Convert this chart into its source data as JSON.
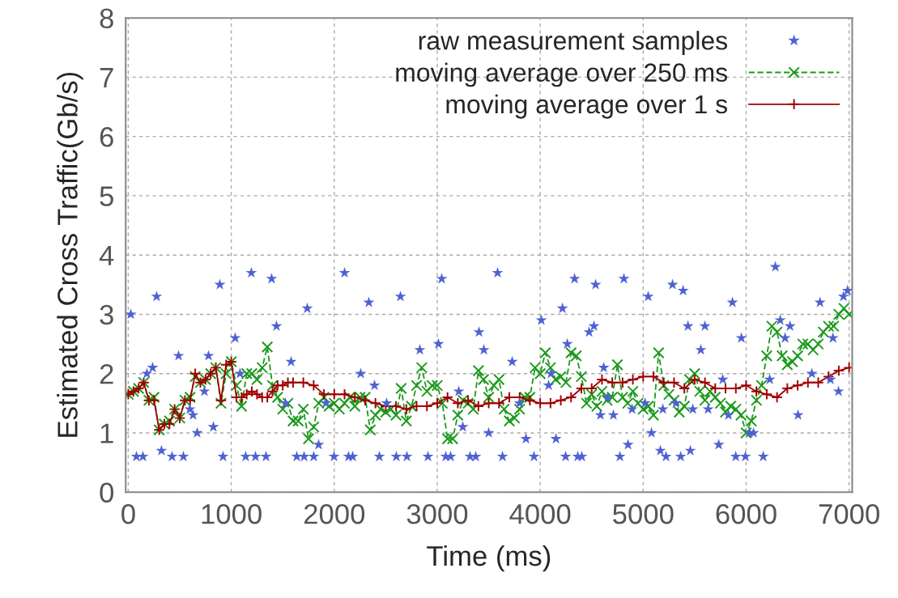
{
  "chart_data": {
    "type": "line",
    "xlabel": "Time (ms)",
    "ylabel": "Estimated Cross Traffic(Gb/s)",
    "xlim": [
      -25,
      7030
    ],
    "xticks": [
      0,
      1000,
      2000,
      3000,
      4000,
      5000,
      6000,
      7000
    ],
    "ylim": [
      0,
      8
    ],
    "yticks": [
      0,
      1,
      2,
      3,
      4,
      5,
      6,
      7,
      8
    ],
    "grid": true,
    "legend": "top right",
    "series": [
      {
        "name": "raw measurement samples",
        "type": "scatter",
        "color": "#4f62d2",
        "marker": "star",
        "x": [
          24,
          79,
          142,
          181,
          236,
          275,
          322,
          425,
          488,
          535,
          598,
          629,
          669,
          739,
          779,
          826,
          889,
          920,
          1038,
          1085,
          1140,
          1195,
          1235,
          1337,
          1392,
          1439,
          1526,
          1581,
          1636,
          1707,
          1738,
          1801,
          1848,
          1919,
          1998,
          2100,
          2139,
          2179,
          2257,
          2336,
          2391,
          2438,
          2509,
          2603,
          2643,
          2706,
          2831,
          2910,
          3012,
          3044,
          3083,
          3130,
          3209,
          3248,
          3319,
          3374,
          3406,
          3453,
          3500,
          3586,
          3634,
          3728,
          3799,
          3862,
          3940,
          4011,
          4082,
          4105,
          4153,
          4216,
          4247,
          4263,
          4334,
          4365,
          4404,
          4475,
          4522,
          4538,
          4585,
          4617,
          4656,
          4711,
          4774,
          4813,
          4853,
          4892,
          5018,
          5049,
          5081,
          5167,
          5191,
          5222,
          5285,
          5317,
          5364,
          5388,
          5435,
          5458,
          5482,
          5560,
          5600,
          5631,
          5734,
          5773,
          5828,
          5867,
          5899,
          5954,
          5993,
          6032,
          6072,
          6166,
          6229,
          6284,
          6331,
          6378,
          6426,
          6504,
          6638,
          6717,
          6819,
          6843,
          6897,
          6945,
          6984
        ],
        "values": [
          3.0,
          0.6,
          0.6,
          2.0,
          2.1,
          3.3,
          0.7,
          0.6,
          2.3,
          0.6,
          1.4,
          1.3,
          1.0,
          1.7,
          2.3,
          1.1,
          3.5,
          0.6,
          2.6,
          2.0,
          0.6,
          3.7,
          0.6,
          0.6,
          3.6,
          2.8,
          1.5,
          2.2,
          0.6,
          0.6,
          3.1,
          0.6,
          0.8,
          1.5,
          0.6,
          3.7,
          0.6,
          0.6,
          2.0,
          3.2,
          1.8,
          0.6,
          1.5,
          0.6,
          3.3,
          0.6,
          2.4,
          0.6,
          2.5,
          3.6,
          0.6,
          0.6,
          1.7,
          1.1,
          0.6,
          0.6,
          2.7,
          2.4,
          1.0,
          3.7,
          0.6,
          2.2,
          1.5,
          0.9,
          0.6,
          2.9,
          1.8,
          2.0,
          0.9,
          3.1,
          0.6,
          2.5,
          3.6,
          0.6,
          0.6,
          2.7,
          2.8,
          3.5,
          1.3,
          2.1,
          1.6,
          1.3,
          0.6,
          3.6,
          0.8,
          1.4,
          1.5,
          3.3,
          1.0,
          0.7,
          1.4,
          0.6,
          3.5,
          1.5,
          0.6,
          3.4,
          2.8,
          0.7,
          1.4,
          2.4,
          2.8,
          1.4,
          0.8,
          1.9,
          1.3,
          3.2,
          0.6,
          2.6,
          0.6,
          1.0,
          1.0,
          0.6,
          1.9,
          3.8,
          2.9,
          2.6,
          2.8,
          1.3,
          2.0,
          3.2,
          1.9,
          2.6,
          1.7,
          3.3,
          3.4
        ]
      },
      {
        "name": "moving average over 250 ms",
        "color": "#1a9a1a",
        "marker": "cross",
        "line_style": "dashed",
        "x": [
          0,
          50,
          100,
          150,
          200,
          250,
          300,
          350,
          400,
          450,
          500,
          550,
          600,
          650,
          700,
          750,
          800,
          850,
          900,
          950,
          1000,
          1050,
          1100,
          1150,
          1200,
          1250,
          1300,
          1350,
          1400,
          1450,
          1500,
          1550,
          1600,
          1650,
          1700,
          1750,
          1800,
          1850,
          1900,
          1950,
          2000,
          2050,
          2100,
          2150,
          2200,
          2250,
          2300,
          2350,
          2400,
          2450,
          2500,
          2550,
          2600,
          2650,
          2700,
          2750,
          2800,
          2850,
          2900,
          2950,
          3000,
          3050,
          3100,
          3150,
          3200,
          3250,
          3300,
          3350,
          3400,
          3450,
          3500,
          3550,
          3600,
          3650,
          3700,
          3750,
          3800,
          3850,
          3900,
          3950,
          4000,
          4050,
          4100,
          4150,
          4200,
          4250,
          4300,
          4350,
          4400,
          4450,
          4500,
          4550,
          4600,
          4650,
          4700,
          4750,
          4800,
          4850,
          4900,
          4950,
          5000,
          5050,
          5100,
          5150,
          5200,
          5250,
          5300,
          5350,
          5400,
          5450,
          5500,
          5550,
          5600,
          5650,
          5700,
          5750,
          5800,
          5850,
          5900,
          5950,
          6000,
          6050,
          6100,
          6150,
          6200,
          6250,
          6300,
          6350,
          6400,
          6450,
          6500,
          6550,
          6600,
          6650,
          6700,
          6750,
          6800,
          6850,
          6900,
          6950,
          7000
        ],
        "values": [
          1.65,
          1.7,
          1.75,
          1.85,
          1.55,
          1.6,
          1.05,
          1.15,
          1.2,
          1.4,
          1.25,
          1.55,
          1.6,
          1.95,
          1.85,
          1.9,
          2.0,
          2.1,
          1.5,
          2.0,
          2.2,
          1.8,
          1.45,
          2.0,
          2.0,
          1.9,
          2.1,
          2.45,
          1.8,
          1.6,
          1.4,
          1.5,
          1.2,
          1.2,
          1.4,
          0.9,
          1.1,
          1.5,
          1.6,
          1.45,
          1.5,
          1.4,
          1.5,
          1.6,
          1.45,
          1.6,
          1.6,
          1.05,
          1.3,
          1.4,
          1.35,
          1.4,
          1.3,
          1.75,
          1.2,
          1.45,
          1.8,
          2.1,
          1.7,
          1.8,
          1.8,
          1.5,
          0.9,
          0.9,
          1.3,
          1.55,
          1.5,
          1.4,
          2.05,
          1.9,
          1.6,
          1.8,
          1.9,
          1.4,
          1.2,
          1.25,
          1.4,
          1.6,
          1.6,
          2.1,
          2.0,
          2.35,
          2.1,
          1.9,
          1.95,
          1.85,
          2.35,
          2.3,
          1.95,
          1.5,
          1.65,
          1.45,
          1.7,
          1.55,
          1.6,
          2.15,
          1.6,
          1.5,
          1.7,
          1.5,
          1.4,
          1.45,
          1.3,
          2.35,
          1.8,
          1.65,
          1.55,
          1.35,
          1.45,
          1.9,
          2.0,
          1.7,
          1.55,
          1.7,
          1.6,
          1.5,
          1.35,
          1.45,
          1.4,
          1.3,
          1.0,
          1.2,
          1.55,
          1.8,
          2.3,
          2.8,
          2.7,
          2.3,
          2.15,
          2.2,
          2.3,
          2.5,
          2.5,
          2.4,
          2.5,
          2.7,
          2.8,
          2.8,
          3.0,
          3.1,
          3.0
        ]
      },
      {
        "name": "moving average over 1 s",
        "color": "#a00000",
        "marker": "plus",
        "line_style": "solid",
        "x": [
          0,
          50,
          100,
          150,
          200,
          250,
          300,
          350,
          400,
          450,
          500,
          550,
          600,
          650,
          700,
          750,
          800,
          850,
          900,
          950,
          1000,
          1050,
          1100,
          1150,
          1200,
          1250,
          1300,
          1350,
          1400,
          1450,
          1500,
          1550,
          1600,
          1700,
          1800,
          1900,
          2000,
          2100,
          2200,
          2300,
          2400,
          2500,
          2600,
          2700,
          2800,
          2900,
          3000,
          3100,
          3200,
          3300,
          3400,
          3500,
          3600,
          3700,
          3800,
          3900,
          4000,
          4100,
          4200,
          4300,
          4400,
          4500,
          4600,
          4700,
          4800,
          4900,
          5000,
          5100,
          5200,
          5300,
          5400,
          5500,
          5600,
          5700,
          5800,
          5900,
          6000,
          6100,
          6200,
          6300,
          6400,
          6500,
          6600,
          6700,
          6800,
          6900,
          7000
        ],
        "values": [
          1.65,
          1.7,
          1.75,
          1.85,
          1.55,
          1.55,
          1.05,
          1.15,
          1.15,
          1.4,
          1.25,
          1.55,
          1.55,
          2.0,
          1.85,
          1.9,
          2.0,
          2.1,
          1.55,
          2.15,
          2.2,
          1.6,
          1.6,
          1.65,
          1.7,
          1.65,
          1.6,
          1.6,
          1.7,
          1.8,
          1.8,
          1.85,
          1.85,
          1.85,
          1.8,
          1.65,
          1.65,
          1.65,
          1.6,
          1.55,
          1.5,
          1.45,
          1.45,
          1.4,
          1.45,
          1.45,
          1.5,
          1.6,
          1.5,
          1.55,
          1.45,
          1.5,
          1.5,
          1.6,
          1.6,
          1.55,
          1.5,
          1.5,
          1.55,
          1.6,
          1.75,
          1.75,
          1.9,
          1.85,
          1.85,
          1.9,
          1.95,
          1.95,
          1.85,
          1.85,
          1.75,
          1.9,
          1.85,
          1.75,
          1.75,
          1.75,
          1.8,
          1.7,
          1.65,
          1.6,
          1.75,
          1.8,
          1.85,
          1.85,
          1.95,
          2.05,
          2.1
        ]
      }
    ]
  }
}
